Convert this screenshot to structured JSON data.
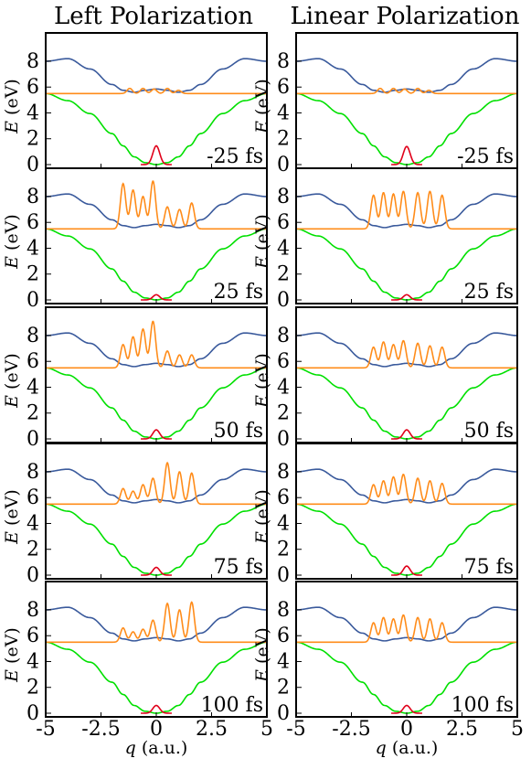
{
  "columns": [
    {
      "title": "Left Polarization",
      "id": "left"
    },
    {
      "title": "Linear Polarization",
      "id": "linear"
    }
  ],
  "axis": {
    "ylabel_var": "E",
    "ylabel_unit": " (eV)",
    "xlabel_var": "q",
    "xlabel_unit": " (a.u.)",
    "xlim": [
      -5,
      5
    ],
    "ylim": [
      0,
      9.2
    ],
    "xticks": [
      {
        "v": -5,
        "label": "-5"
      },
      {
        "v": -2.5,
        "label": "-2.5"
      },
      {
        "v": 0,
        "label": "0"
      },
      {
        "v": 2.5,
        "label": "2.5"
      },
      {
        "v": 5,
        "label": "5"
      }
    ],
    "yticks": [
      {
        "v": 0,
        "label": "0"
      },
      {
        "v": 2,
        "label": "2"
      },
      {
        "v": 4,
        "label": "4"
      },
      {
        "v": 6,
        "label": "6"
      },
      {
        "v": 8,
        "label": "8"
      }
    ]
  },
  "colors": {
    "ground": "#00e000",
    "excited": "#3a5a9c",
    "ground_packet": "#e0001a",
    "excited_packet": "#ff8c1a"
  },
  "chart_data": {
    "type": "line",
    "rows": [
      "-25 fs",
      "25 fs",
      "50 fs",
      "75 fs",
      "100 fs"
    ],
    "potentials": {
      "ground": {
        "x": [
          -5,
          -4,
          -3,
          -2,
          -1.5,
          -1,
          -0.5,
          0,
          0.5,
          1,
          1.5,
          2,
          3,
          4,
          5
        ],
        "y": [
          5.5,
          4.95,
          3.95,
          2.4,
          1.45,
          0.6,
          0.15,
          0,
          0.15,
          0.6,
          1.45,
          2.4,
          3.95,
          4.95,
          5.5
        ]
      },
      "excited": {
        "x": [
          -5,
          -4,
          -3,
          -2,
          -1.5,
          -1,
          -0.5,
          0,
          0.5,
          1,
          1.5,
          2,
          3,
          4,
          5
        ],
        "y": [
          8.0,
          8.2,
          7.4,
          6.2,
          5.75,
          5.6,
          5.75,
          5.85,
          5.75,
          5.6,
          5.75,
          6.2,
          7.4,
          8.2,
          8.0
        ]
      },
      "ground_packet_peak": 1.45,
      "excited_packet_baseline": 5.5
    },
    "excited_packets": {
      "left": [
        {
          "x": [
            -1.2,
            -0.6,
            -0.1,
            0.5,
            1.0
          ],
          "y": [
            5.9,
            5.9,
            5.85,
            5.9,
            5.75
          ]
        },
        {
          "x": [
            -1.5,
            -1.05,
            -0.6,
            -0.15,
            0.5,
            1.05,
            1.6
          ],
          "y": [
            9.0,
            8.5,
            8.0,
            9.2,
            7.2,
            7.0,
            7.5
          ]
        },
        {
          "x": [
            -1.5,
            -1.05,
            -0.6,
            -0.15,
            0.5,
            1.05,
            1.6
          ],
          "y": [
            7.3,
            7.9,
            8.5,
            9.1,
            6.8,
            6.5,
            6.5
          ]
        },
        {
          "x": [
            -1.5,
            -1.05,
            -0.6,
            -0.15,
            0.5,
            1.05,
            1.6
          ],
          "y": [
            6.7,
            6.5,
            7.0,
            7.5,
            8.7,
            8.0,
            7.9
          ]
        },
        {
          "x": [
            -1.5,
            -1.05,
            -0.6,
            -0.15,
            0.5,
            1.05,
            1.6
          ],
          "y": [
            6.6,
            6.3,
            6.5,
            7.2,
            8.5,
            8.0,
            8.6
          ]
        }
      ],
      "linear": [
        {
          "x": [
            -1.2,
            -0.6,
            -0.1,
            0.5,
            1.0
          ],
          "y": [
            5.9,
            5.9,
            5.85,
            5.9,
            5.75
          ]
        },
        {
          "x": [
            -1.5,
            -1.05,
            -0.6,
            -0.15,
            0.5,
            1.05,
            1.6
          ],
          "y": [
            8.1,
            8.3,
            8.2,
            8.4,
            8.3,
            8.4,
            8.1
          ]
        },
        {
          "x": [
            -1.5,
            -1.05,
            -0.6,
            -0.15,
            0.5,
            1.05,
            1.6
          ],
          "y": [
            7.1,
            7.5,
            7.3,
            7.6,
            7.4,
            7.2,
            7.1
          ]
        },
        {
          "x": [
            -1.5,
            -1.05,
            -0.6,
            -0.15,
            0.5,
            1.05,
            1.6
          ],
          "y": [
            7.0,
            7.3,
            7.6,
            7.8,
            7.5,
            7.3,
            7.1
          ]
        },
        {
          "x": [
            -1.5,
            -1.05,
            -0.6,
            -0.15,
            0.5,
            1.05,
            1.6
          ],
          "y": [
            7.0,
            7.4,
            7.3,
            7.6,
            7.4,
            7.3,
            7.0
          ]
        }
      ]
    },
    "ground_packet_peaks": {
      "left": [
        1.45,
        0.4,
        0.7,
        0.6,
        0.6
      ],
      "linear": [
        1.4,
        0.4,
        0.7,
        0.7,
        0.6
      ]
    }
  }
}
